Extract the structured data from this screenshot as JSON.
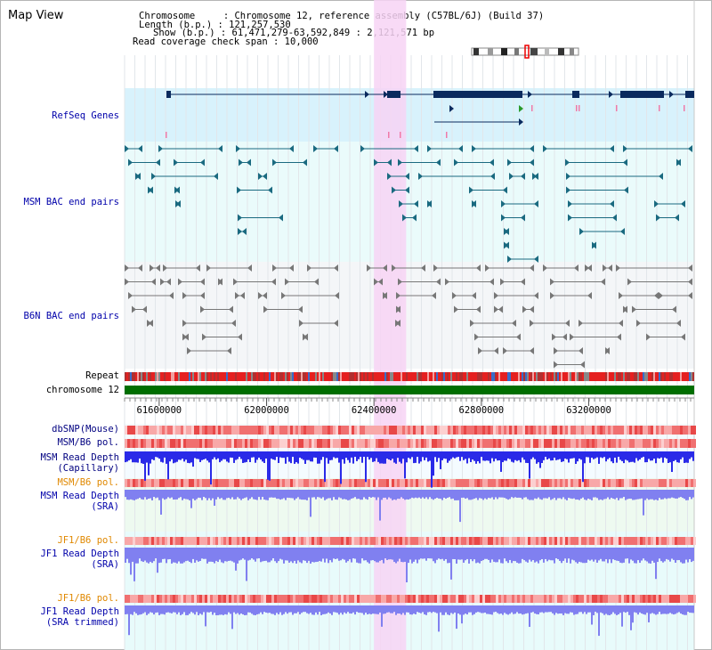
{
  "header": {
    "view_title": "Map View",
    "chromosome_line": "Chromosome     : Chromosome 12, reference assembly (C57BL/6J) (Build 37)",
    "length_line": "Length (b.p.) : 121,257,530",
    "show_line": "Show (b.p.) : 61,471,279-63,592,849 : 2,121,571 bp",
    "coverage_line": "Read coverage check span : 10,000"
  },
  "tracks": {
    "refseq": "RefSeq Genes",
    "msm_bac": "MSM BAC end pairs",
    "b6n_bac": "B6N BAC end pairs",
    "repeat": "Repeat",
    "chromosome": "chromosome 12",
    "dbsnp": "dbSNP(Mouse)",
    "msm_b6_pol": "MSM/B6 pol.",
    "msm_depth_cap_1": "MSM Read Depth",
    "msm_depth_cap_2": "(Capillary)",
    "msm_b6_pol_2": "MSM/B6 pol.",
    "msm_depth_sra_1": "MSM Read Depth",
    "msm_depth_sra_2": "(SRA)",
    "jf1_b6_pol": "JF1/B6 pol.",
    "jf1_depth_sra_1": "JF1 Read Depth",
    "jf1_depth_sra_2": "(SRA)",
    "jf1_b6_pol_2": "JF1/B6 pol.",
    "jf1_depth_trim_1": "JF1 Read Depth",
    "jf1_depth_trim_2": "(SRA trimmed)"
  },
  "axis": {
    "ticks": [
      "61600000",
      "62000000",
      "62400000",
      "62800000",
      "63200000"
    ],
    "tick_values": [
      61600000,
      62000000,
      62400000,
      62800000,
      63200000
    ],
    "range": [
      61471279,
      63592849
    ]
  },
  "highlight_region": [
    62400000,
    62520000
  ],
  "colors": {
    "refseq_bg": "#d8f2fc",
    "msm_bac_bg": "#eafbfb",
    "b6n_bac_bg": "#f4f6f8",
    "highlight": "#f7d3f5",
    "gene": "#0a2a5e",
    "msm_bac": "#1a6a80",
    "b6n_bac": "#777777",
    "chromosome_bar": "#006e00",
    "depth_dark": "#2a2ae8",
    "depth_light": "#8080f0",
    "label_blue": "#0000aa",
    "label_orange": "#e08800"
  }
}
